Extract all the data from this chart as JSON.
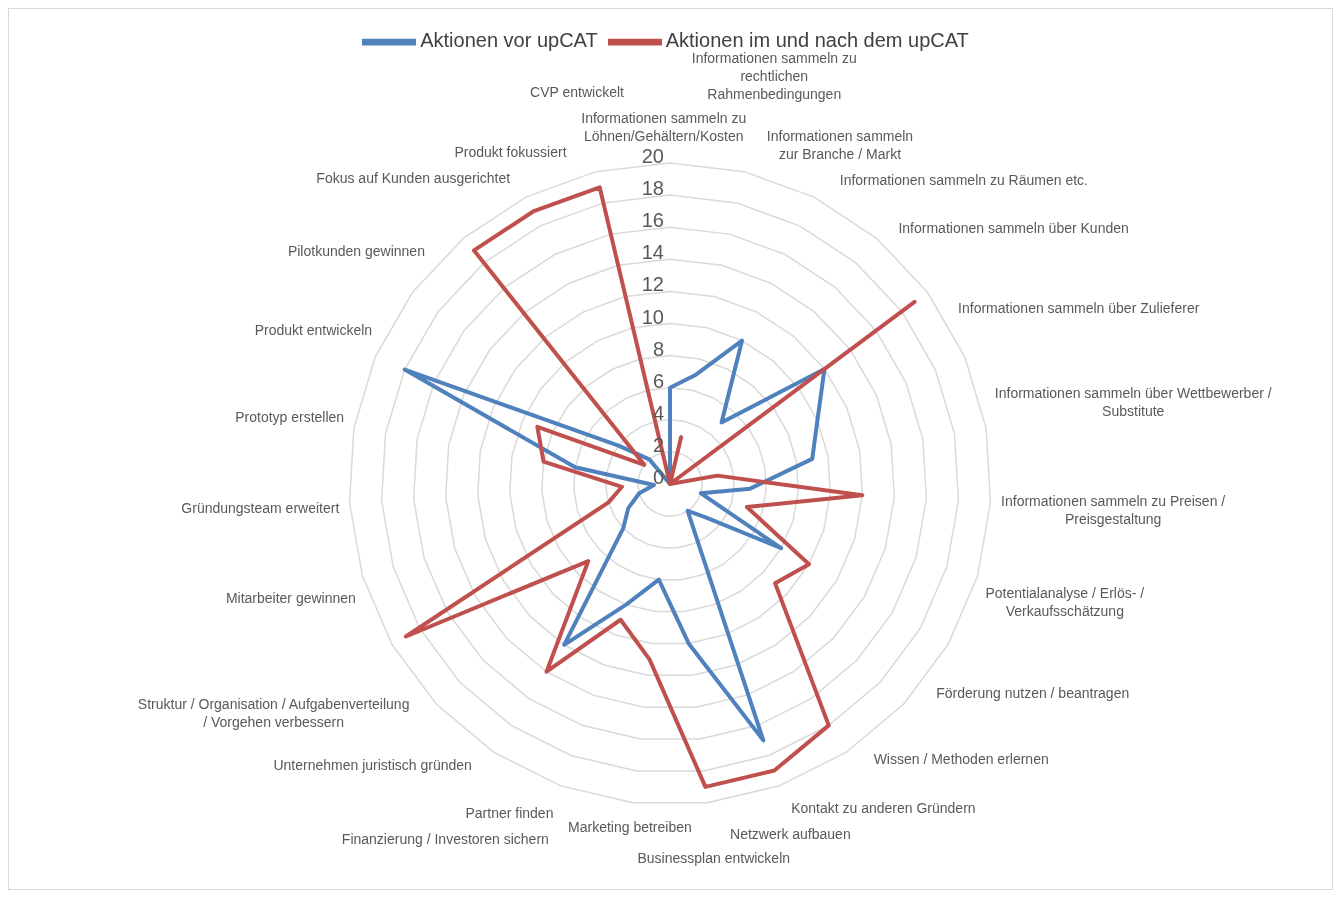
{
  "chart_data": {
    "type": "radar",
    "categories": [
      "Informationen sammeln zu Löhnen/Gehältern/Kosten",
      "Informationen sammeln zu rechtlichen Rahmenbedingungen",
      "Informationen sammeln zur Branche / Markt",
      "Informationen sammeln zu Räumen etc.",
      "Informationen sammeln über Kunden",
      "Informationen sammeln über Zulieferer",
      "Informationen sammeln über Wettbewerber / Substitute",
      "Informationen sammeln zu Preisen / Preisgestaltung",
      "Potentialanalyse / Erlös- / Verkaufsschätzung",
      "Förderung nutzen / beantragen",
      "Wissen / Methoden erlernen",
      "Kontakt zu anderen Gründern",
      "Netzwerk aufbauen",
      "Businessplan entwickeln",
      "Marketing betreiben",
      "Partner finden",
      "Finanzierung / Investoren sichern",
      "Unternehmen juristisch gründen",
      "Struktur / Organisation / Aufgabenverteilung / Vorgehen verbessern",
      "Mitarbeiter gewinnen",
      "Gründungsteam erweitert",
      "Prototyp erstellen",
      "Produkt entwickeln",
      "Pilotkunden gewinnen",
      "Fokus auf Kunden ausgerichtet",
      "Produkt fokussiert",
      "CVP entwickelt"
    ],
    "series": [
      {
        "name": "Aktionen vor upCAT",
        "color": "#4f81bd",
        "values": [
          6,
          7,
          10,
          5,
          12,
          10,
          9,
          5,
          2,
          8,
          3,
          2,
          17,
          10,
          6,
          8,
          12,
          4,
          3,
          2,
          1,
          6,
          18,
          4,
          2,
          0,
          0
        ]
      },
      {
        "name": "Aktionen im und nach dem upCAT",
        "color": "#c0504d",
        "values": [
          0,
          3,
          0,
          0,
          19,
          0,
          3,
          12,
          5,
          10,
          9,
          18,
          19,
          19,
          11,
          9,
          14,
          7,
          19,
          4,
          3,
          8,
          9,
          2,
          19,
          19,
          19
        ]
      }
    ],
    "ylim": [
      0,
      20
    ],
    "yticks": [
      0,
      2,
      4,
      6,
      8,
      10,
      12,
      14,
      16,
      18,
      20
    ],
    "grid": true,
    "legend": "top"
  }
}
